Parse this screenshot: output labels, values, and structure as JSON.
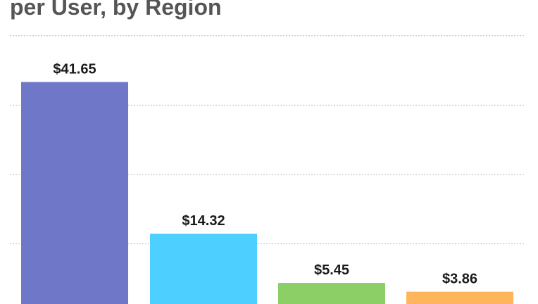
{
  "chart_data": {
    "type": "bar",
    "title": "per User, by Region",
    "categories": [
      "",
      "",
      "",
      ""
    ],
    "values": [
      41.65,
      14.32,
      5.45,
      3.86
    ],
    "data_labels": [
      "$41.65",
      "$14.32",
      "$5.45",
      "$3.86"
    ],
    "colors": [
      "#6f78c8",
      "#4dcfff",
      "#8ccf66",
      "#ffb55c"
    ],
    "ylim": [
      0,
      50
    ],
    "grid": true,
    "legend": "none"
  }
}
